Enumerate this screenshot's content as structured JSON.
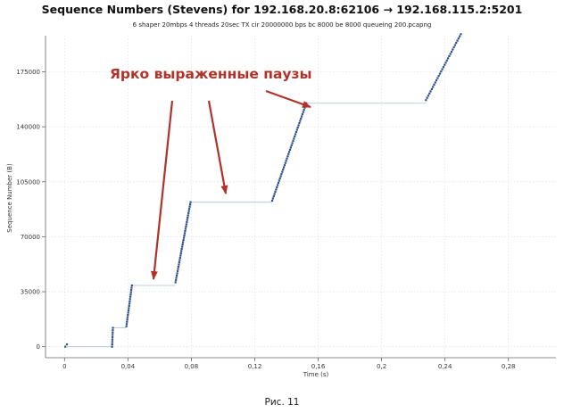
{
  "chart_data": {
    "type": "scatter",
    "title": "Sequence Numbers (Stevens) for 192.168.20.8:62106 → 192.168.115.2:5201",
    "subtitle": "6 shaper 20mbps 4 threads 20sec TX cir 20000000 bps bc 8000 be 8000 queueing 200.pcapng",
    "xlabel": "Time (s)",
    "ylabel": "Sequence Number (B)",
    "xlim": [
      -0.012,
      0.31
    ],
    "ylim": [
      -7000,
      198000
    ],
    "x_ticks": [
      "0",
      "0,04",
      "0,08",
      "0,12",
      "0,16",
      "0,2",
      "0,24",
      "0,28"
    ],
    "x_tick_values": [
      0,
      0.04,
      0.08,
      0.12,
      0.16,
      0.2,
      0.24,
      0.28
    ],
    "y_ticks": [
      "0",
      "35000",
      "70000",
      "105000",
      "140000",
      "175000"
    ],
    "y_tick_values": [
      0,
      35000,
      70000,
      105000,
      140000,
      175000
    ],
    "grid": true,
    "series": [
      {
        "color": "#2c4f8e",
        "segments": [
          {
            "x": [
              0.0005,
              0.0015
            ],
            "y": [
              0,
              1500
            ]
          },
          {
            "x": [
              0.03,
              0.0305
            ],
            "y": [
              0,
              12000
            ]
          },
          {
            "x": [
              0.039,
              0.0425
            ],
            "y": [
              13000,
              39000
            ]
          },
          {
            "x": [
              0.07,
              0.0795
            ],
            "y": [
              41000,
              92000
            ]
          },
          {
            "x": [
              0.131,
              0.1525
            ],
            "y": [
              93000,
              155000
            ]
          },
          {
            "x": [
              0.228,
              0.25
            ],
            "y": [
              157000,
              199000
            ]
          }
        ]
      }
    ],
    "flat_lines": [
      {
        "x": [
          0.0015,
          0.03
        ],
        "y": 0
      },
      {
        "x": [
          0.0305,
          0.039
        ],
        "y": 12000
      },
      {
        "x": [
          0.0425,
          0.07
        ],
        "y": 39000
      },
      {
        "x": [
          0.0795,
          0.131
        ],
        "y": 92000
      },
      {
        "x": [
          0.1525,
          0.228
        ],
        "y": 155000
      }
    ],
    "annotation": {
      "text": "Ярко выраженные паузы",
      "color": "#b03228"
    }
  },
  "caption": "Рис. 11"
}
